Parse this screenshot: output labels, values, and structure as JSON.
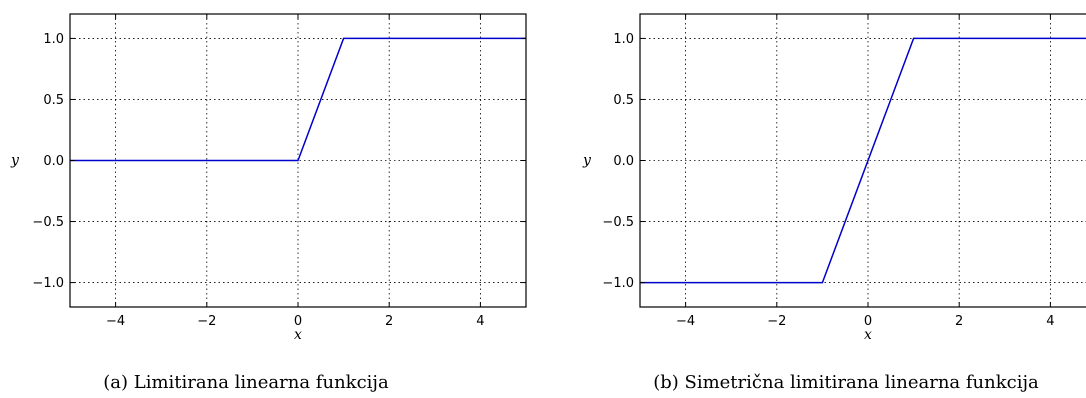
{
  "chart_data": [
    {
      "type": "line",
      "caption": "(a) Limitirana linearna funkcija",
      "xlabel": "x",
      "ylabel": "y",
      "xlim": [
        -5,
        5
      ],
      "ylim": [
        -1.2,
        1.2
      ],
      "xticks": [
        -4,
        -2,
        0,
        2,
        4
      ],
      "xtick_labels": [
        "−4",
        "−2",
        "0",
        "2",
        "4"
      ],
      "yticks": [
        1.0,
        0.5,
        0.0,
        -0.5,
        -1.0
      ],
      "ytick_labels": [
        "1.0",
        "0.5",
        "0.0",
        "−0.5",
        "−1.0"
      ],
      "grid": true,
      "series": [
        {
          "color": "#0000cc",
          "x": [
            -5,
            0,
            1,
            5
          ],
          "y": [
            0,
            0,
            1,
            1
          ]
        }
      ]
    },
    {
      "type": "line",
      "caption": "(b) Simetrična limitirana linearna funkcija",
      "xlabel": "x",
      "ylabel": "y",
      "xlim": [
        -5,
        5
      ],
      "ylim": [
        -1.2,
        1.2
      ],
      "xticks": [
        -4,
        -2,
        0,
        2,
        4
      ],
      "xtick_labels": [
        "−4",
        "−2",
        "0",
        "2",
        "4"
      ],
      "yticks": [
        1.0,
        0.5,
        0.0,
        -0.5,
        -1.0
      ],
      "ytick_labels": [
        "1.0",
        "0.5",
        "0.0",
        "−0.5",
        "−1.0"
      ],
      "grid": true,
      "series": [
        {
          "color": "#0000cc",
          "x": [
            -5,
            -1,
            1,
            5
          ],
          "y": [
            -1,
            -1,
            1,
            1
          ]
        }
      ]
    }
  ]
}
